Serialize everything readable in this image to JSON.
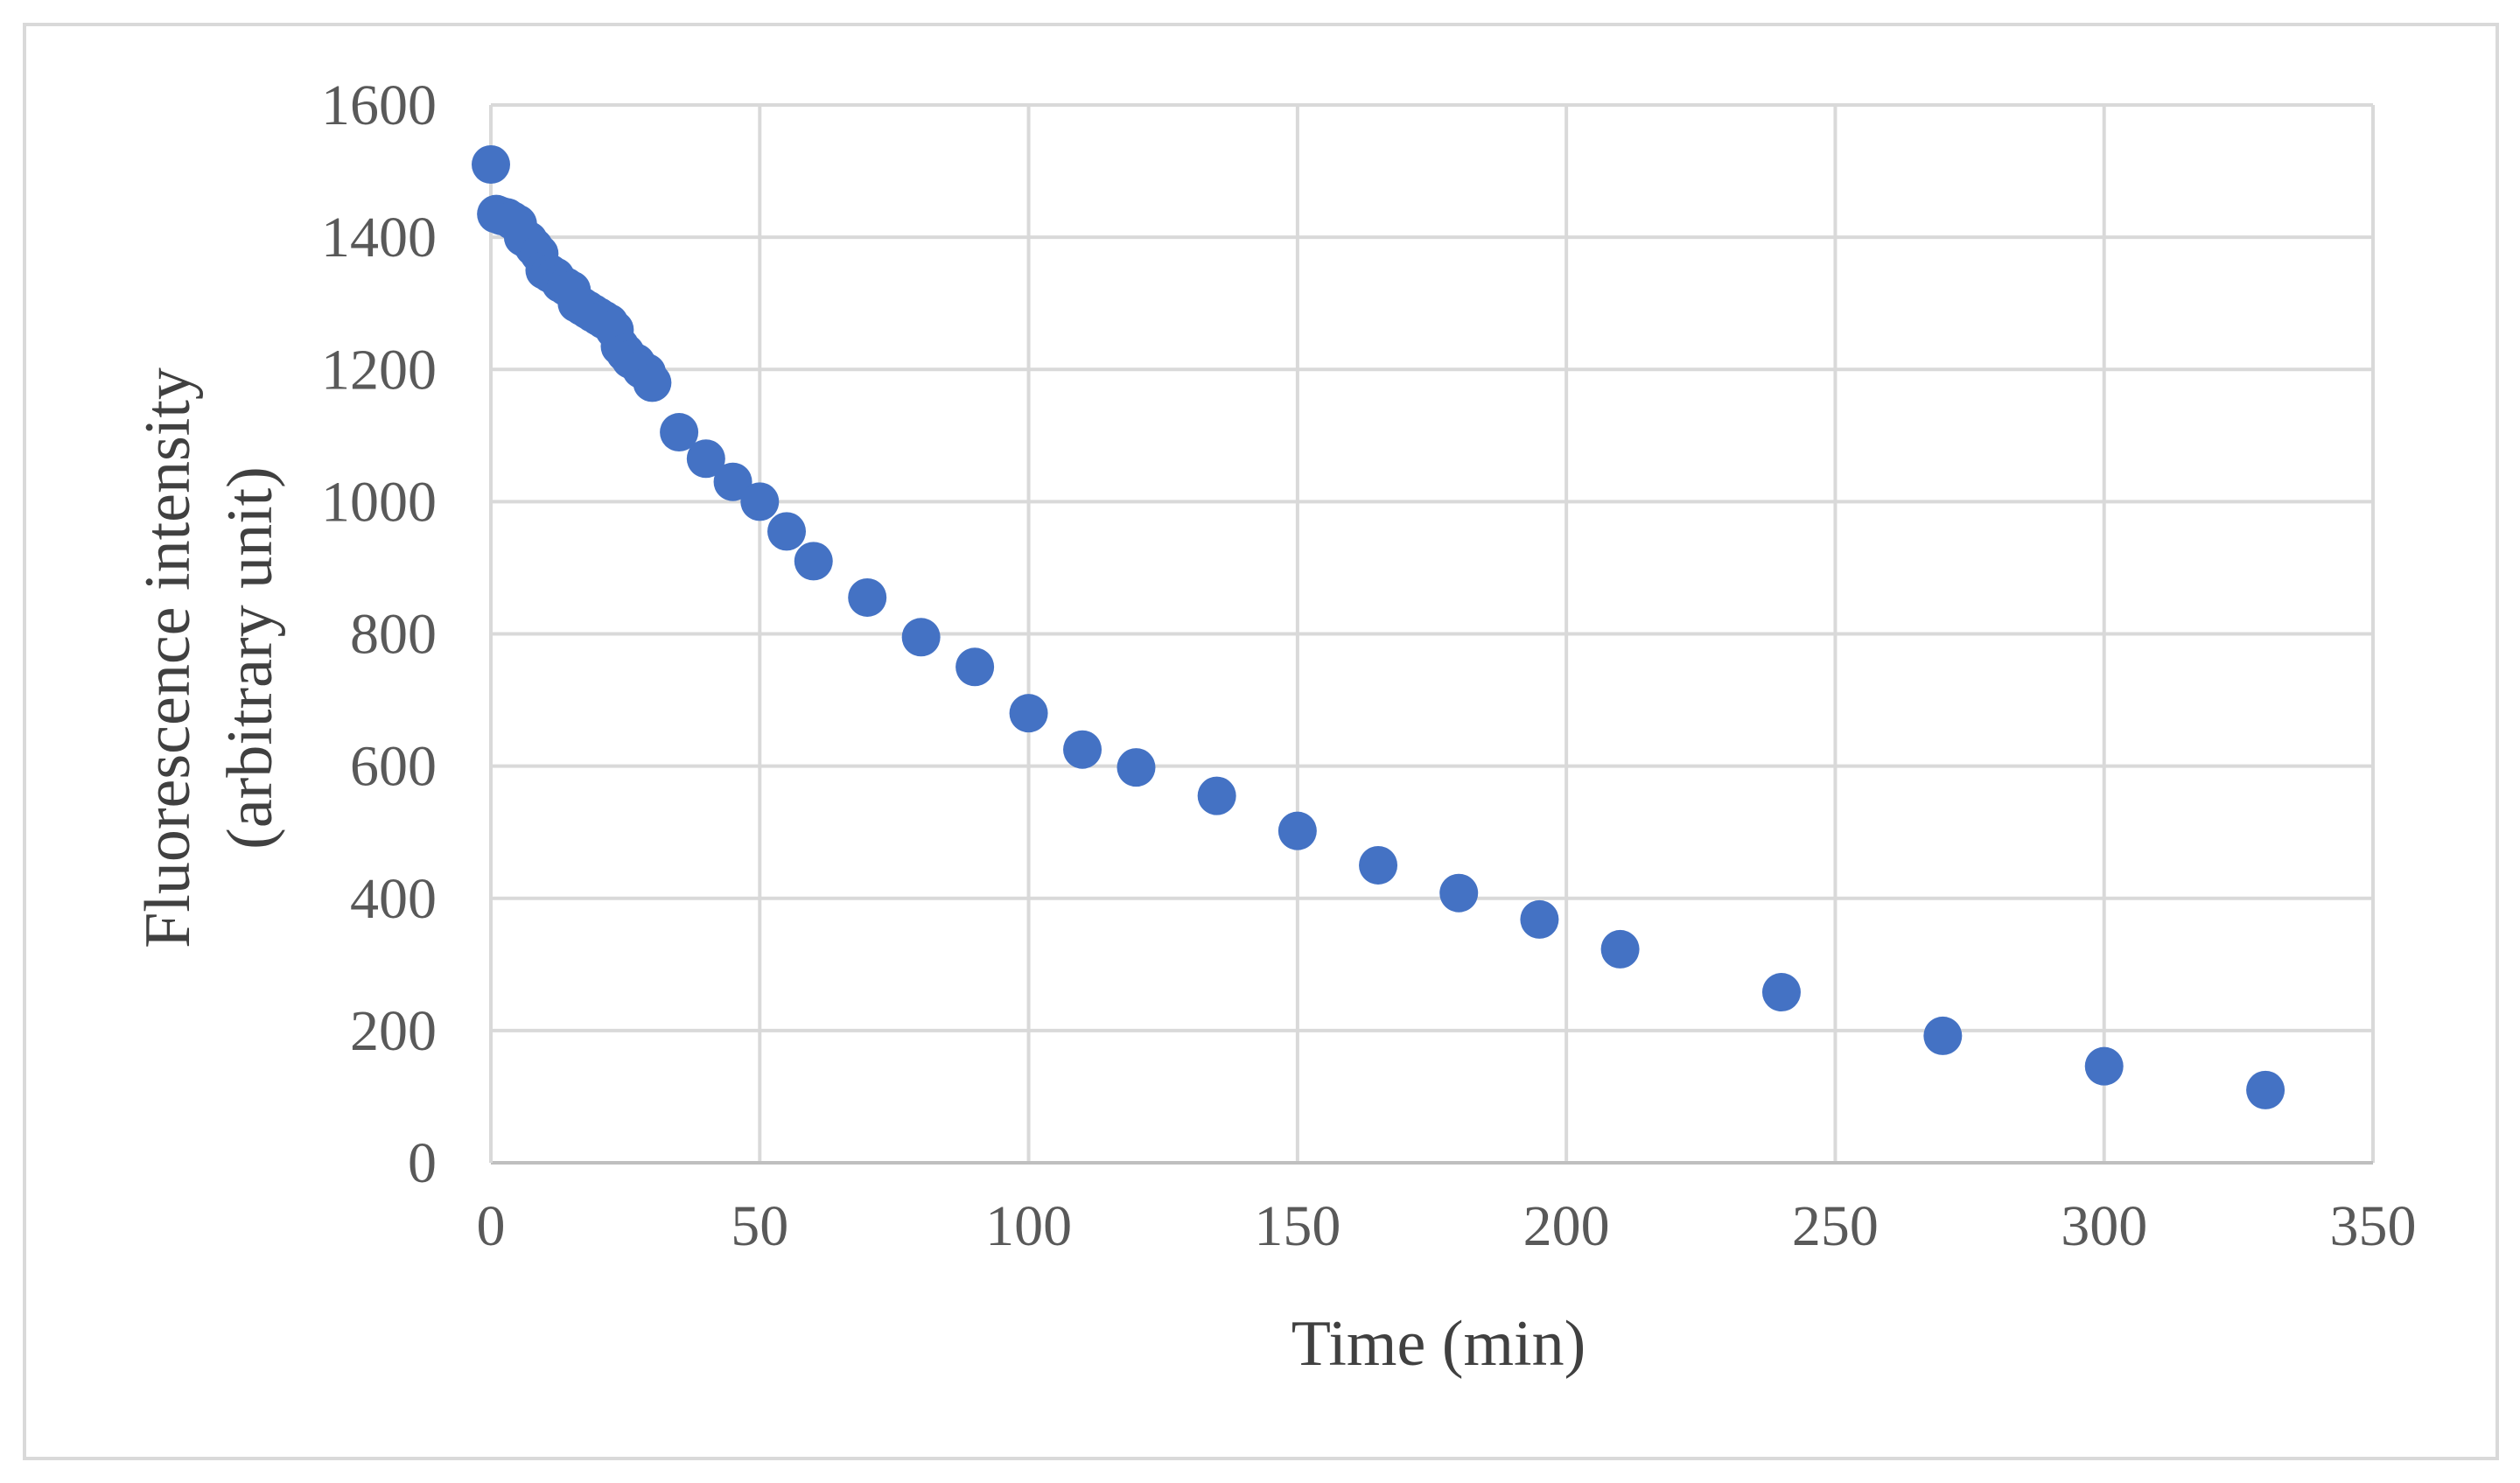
{
  "chart_data": {
    "type": "scatter",
    "title": "",
    "xlabel": "Time (min)",
    "ylabel_lines": [
      "Fluorescence intensity",
      "(arbitrary unit)"
    ],
    "xlim": [
      0,
      350
    ],
    "ylim": [
      0,
      1600
    ],
    "x_ticks": [
      0,
      50,
      100,
      150,
      200,
      250,
      300,
      350
    ],
    "y_ticks": [
      0,
      200,
      400,
      600,
      800,
      1000,
      1200,
      1400,
      1600
    ],
    "x_tick_labels": [
      "0",
      "50",
      "100",
      "150",
      "200",
      "250",
      "300",
      "350"
    ],
    "y_tick_labels": [
      "0",
      "200",
      "400",
      "600",
      "800",
      "1000",
      "1200",
      "1400",
      "1600"
    ],
    "grid": true,
    "legend": "none",
    "marker_color": "#4472c4",
    "grid_color": "#d9d9d9",
    "series": [
      {
        "points": [
          [
            0,
            1510
          ],
          [
            1,
            1435
          ],
          [
            2,
            1432
          ],
          [
            3,
            1430
          ],
          [
            4,
            1425
          ],
          [
            5,
            1420
          ],
          [
            6,
            1400
          ],
          [
            7,
            1395
          ],
          [
            8,
            1385
          ],
          [
            9,
            1375
          ],
          [
            10,
            1350
          ],
          [
            11,
            1345
          ],
          [
            12,
            1340
          ],
          [
            13,
            1330
          ],
          [
            14,
            1325
          ],
          [
            15,
            1320
          ],
          [
            16,
            1300
          ],
          [
            17,
            1295
          ],
          [
            18,
            1290
          ],
          [
            19,
            1285
          ],
          [
            20,
            1280
          ],
          [
            21,
            1275
          ],
          [
            22,
            1270
          ],
          [
            23,
            1260
          ],
          [
            24,
            1235
          ],
          [
            25,
            1225
          ],
          [
            26,
            1215
          ],
          [
            27,
            1210
          ],
          [
            28,
            1200
          ],
          [
            29,
            1195
          ],
          [
            30,
            1180
          ],
          [
            35,
            1105
          ],
          [
            40,
            1065
          ],
          [
            45,
            1030
          ],
          [
            50,
            1000
          ],
          [
            55,
            955
          ],
          [
            60,
            910
          ],
          [
            70,
            855
          ],
          [
            80,
            795
          ],
          [
            90,
            750
          ],
          [
            100,
            680
          ],
          [
            110,
            625
          ],
          [
            120,
            598
          ],
          [
            135,
            555
          ],
          [
            150,
            502
          ],
          [
            165,
            450
          ],
          [
            180,
            408
          ],
          [
            195,
            368
          ],
          [
            210,
            323
          ],
          [
            240,
            258
          ],
          [
            270,
            192
          ],
          [
            300,
            146
          ],
          [
            330,
            110
          ]
        ]
      }
    ]
  }
}
